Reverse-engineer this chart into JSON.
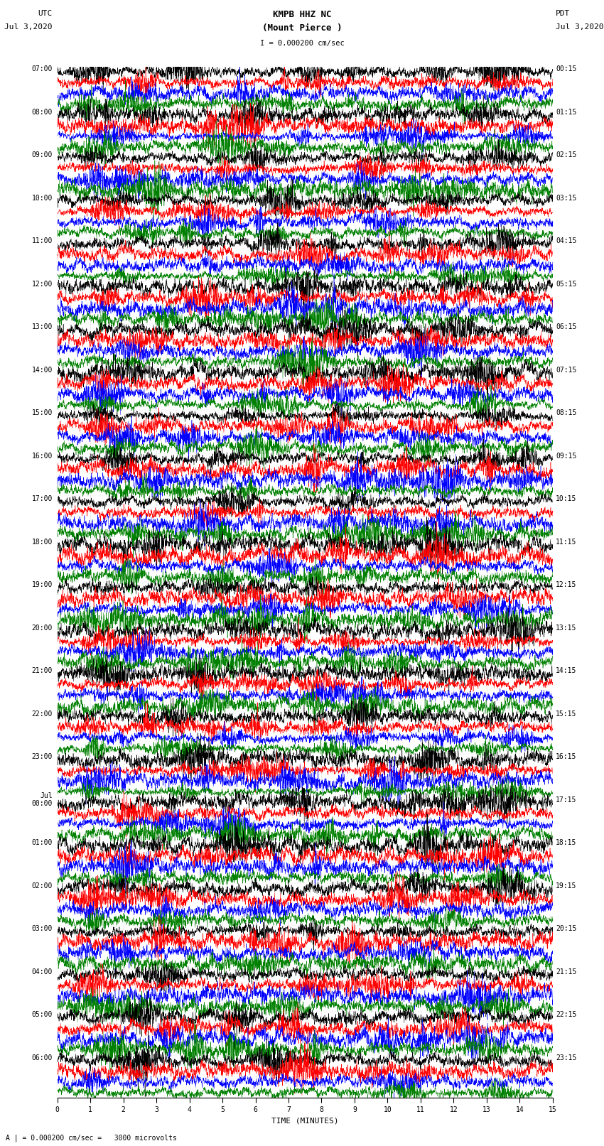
{
  "title_line1": "KMPB HHZ NC",
  "title_line2": "(Mount Pierce )",
  "scale_text": "I = 0.000200 cm/sec",
  "left_header": "UTC",
  "left_subheader": "Jul 3,2020",
  "right_header": "PDT",
  "right_subheader": "Jul 3,2020",
  "bottom_label": "TIME (MINUTES)",
  "bottom_note": "A | = 0.000200 cm/sec =   3000 microvolts",
  "utc_labels": [
    "07:00",
    "08:00",
    "09:00",
    "10:00",
    "11:00",
    "12:00",
    "13:00",
    "14:00",
    "15:00",
    "16:00",
    "17:00",
    "18:00",
    "19:00",
    "20:00",
    "21:00",
    "22:00",
    "23:00",
    "Jul\n00:00",
    "01:00",
    "02:00",
    "03:00",
    "04:00",
    "05:00",
    "06:00"
  ],
  "pdt_labels": [
    "00:15",
    "01:15",
    "02:15",
    "03:15",
    "04:15",
    "05:15",
    "06:15",
    "07:15",
    "08:15",
    "09:15",
    "10:15",
    "11:15",
    "12:15",
    "13:15",
    "14:15",
    "15:15",
    "16:15",
    "17:15",
    "18:15",
    "19:15",
    "20:15",
    "21:15",
    "22:15",
    "23:15"
  ],
  "num_rows": 24,
  "traces_per_row": 4,
  "trace_colors": [
    "black",
    "red",
    "blue",
    "green"
  ],
  "minutes_per_row": 15,
  "bg_color": "white",
  "fig_width": 8.5,
  "fig_height": 16.13,
  "dpi": 100,
  "xlabel_fontsize": 8,
  "title_fontsize": 9,
  "tick_fontsize": 7,
  "header_fontsize": 8
}
